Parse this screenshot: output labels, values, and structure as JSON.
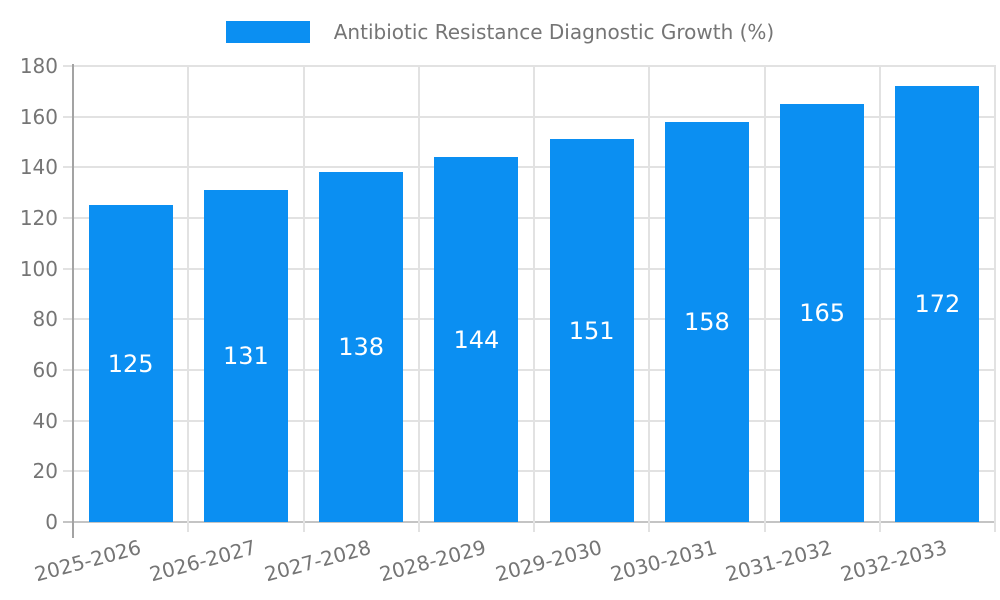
{
  "chart_data": {
    "type": "bar",
    "title": "Antibiotic Resistance Diagnostic Growth (%)",
    "series_name": "Antibiotic Resistance Diagnostic Growth (%)",
    "categories": [
      "2025-2026",
      "2026-2027",
      "2027-2028",
      "2028-2029",
      "2029-2030",
      "2030-2031",
      "2031-2032",
      "2032-2033"
    ],
    "values": [
      125,
      131,
      138,
      144,
      151,
      158,
      165,
      172
    ],
    "value_labels": [
      "125",
      "131",
      "138",
      "144",
      "151",
      "158",
      "165",
      "172"
    ],
    "xlabel": "",
    "ylabel": "",
    "ylim": [
      0,
      180
    ],
    "ytick_step": 20,
    "yticks": [
      "0",
      "20",
      "40",
      "60",
      "80",
      "100",
      "120",
      "140",
      "160",
      "180"
    ],
    "grid": true,
    "legend_position": "top-center",
    "x_label_rotation_deg": -15,
    "colors": {
      "bar": "#0b8ff2",
      "axis_text": "#757575",
      "grid": "#e2e2e2",
      "axis_line": "#a3a3a3",
      "bottom_line": "#c4c4c4",
      "value_label": "#ffffff",
      "background": "#ffffff"
    }
  }
}
